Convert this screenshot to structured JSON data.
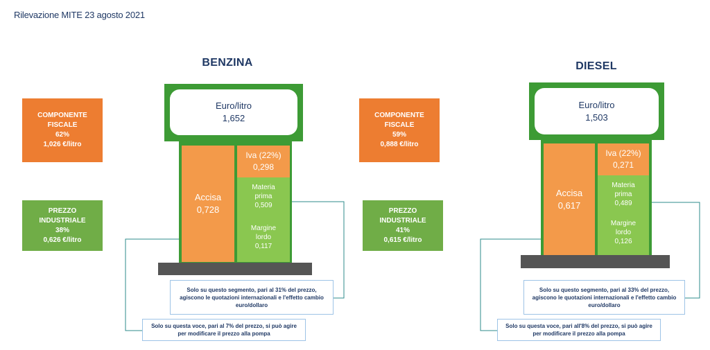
{
  "title": "Rilevazione MITE 23 agosto 2021",
  "colors": {
    "fiscal": "#ed7d31",
    "industrial": "#70ad47",
    "pump_frame": "#3d9b35",
    "base": "#555555",
    "connector": "#2e8b8b"
  },
  "benzina": {
    "heading": "BENZINA",
    "fiscal": {
      "line1": "COMPONENTE",
      "line2": "FISCALE",
      "pct": "62%",
      "value": "1,026 €/litro"
    },
    "industrial": {
      "line1": "PREZZO",
      "line2": "INDUSTRIALE",
      "pct": "38%",
      "value": "0,626 €/litro"
    },
    "price_label": "Euro/litro",
    "price_value": "1,652",
    "accisa_label": "Accisa",
    "accisa_value": "0,728",
    "iva_label": "Iva (22%)",
    "iva_value": "0,298",
    "materia_line1": "Materia",
    "materia_line2": "prima",
    "materia_value": "0,509",
    "margine_line1": "Margine",
    "margine_line2": "lordo",
    "margine_value": "0,117",
    "note_segment": {
      "line1": "Solo su questo segmento, pari al 31% del prezzo,",
      "line2": "agiscono le quotazioni internazionali e l'effetto cambio",
      "line3": "euro/dollaro"
    },
    "note_voce": {
      "line1": "Solo su questa voce, pari al 7% del prezzo, si può agire",
      "line2": "per modificare il prezzo alla pompa"
    }
  },
  "diesel": {
    "heading": "DIESEL",
    "fiscal": {
      "line1": "COMPONENTE",
      "line2": "FISCALE",
      "pct": "59%",
      "value": "0,888 €/litro"
    },
    "industrial": {
      "line1": "PREZZO",
      "line2": "INDUSTRIALE",
      "pct": "41%",
      "value": "0,615 €/litro"
    },
    "price_label": "Euro/litro",
    "price_value": "1,503",
    "accisa_label": "Accisa",
    "accisa_value": "0,617",
    "iva_label": "Iva (22%)",
    "iva_value": "0,271",
    "materia_line1": "Materia",
    "materia_line2": "prima",
    "materia_value": "0,489",
    "margine_line1": "Margine",
    "margine_line2": "lordo",
    "margine_value": "0,126",
    "note_segment": {
      "line1": "Solo su questo segmento, pari al 33% del prezzo,",
      "line2": "agiscono le quotazioni internazionali e l'effetto cambio",
      "line3": "euro/dollaro"
    },
    "note_voce": {
      "line1": "Solo su questa voce, pari all'8% del prezzo, si può agire",
      "line2": "per modificare il prezzo alla pompa"
    }
  }
}
